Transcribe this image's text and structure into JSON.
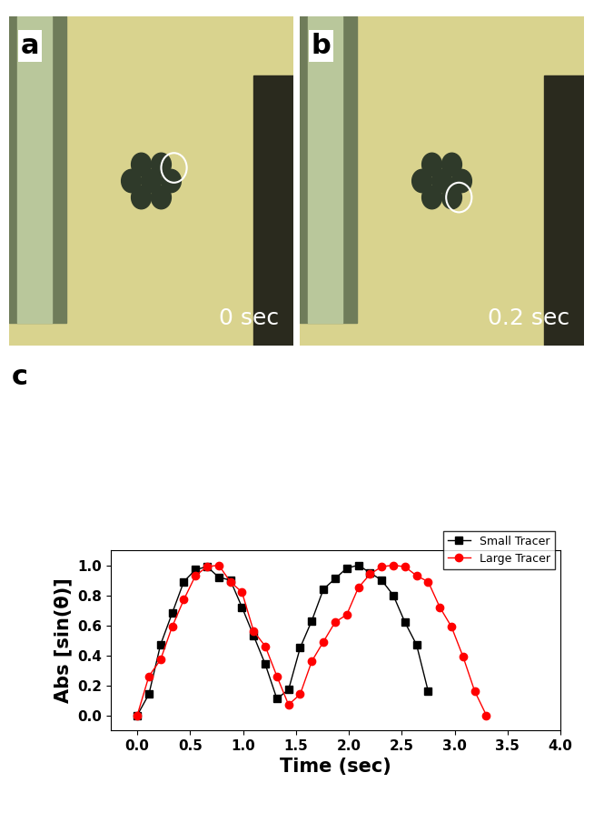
{
  "images": [
    {
      "label": "a",
      "time_label": "0 sec"
    },
    {
      "label": "b",
      "time_label": "0.2 sec"
    }
  ],
  "chart_data": {
    "type": "line",
    "panel_label": "c",
    "x_label": "Time (sec)",
    "y_label": "Abs [sin(θ)]",
    "xlim": [
      -0.25,
      4.0
    ],
    "ylim": [
      -0.1,
      1.1
    ],
    "xticks": [
      {
        "value": 0,
        "label": "0.0"
      },
      {
        "value": 0.5,
        "label": "0.5"
      },
      {
        "value": 1,
        "label": "1.0"
      },
      {
        "value": 1.5,
        "label": "1.5"
      },
      {
        "value": 2,
        "label": "2.0"
      },
      {
        "value": 2.5,
        "label": "2.5"
      },
      {
        "value": 3,
        "label": "3.0"
      },
      {
        "value": 3.5,
        "label": "3.5"
      },
      {
        "value": 4,
        "label": "4.0"
      }
    ],
    "yticks": [
      {
        "value": 0,
        "label": "0.0"
      },
      {
        "value": 0.2,
        "label": "0.2"
      },
      {
        "value": 0.4,
        "label": "0.4"
      },
      {
        "value": 0.6,
        "label": "0.6"
      },
      {
        "value": 0.8,
        "label": "0.8"
      },
      {
        "value": 1,
        "label": "1.0"
      }
    ],
    "legend": "upper right",
    "series": [
      {
        "name": "Small Tracer",
        "color": "#000000",
        "marker": "square",
        "line_style": "solid",
        "x": [
          0,
          0.11,
          0.22,
          0.33,
          0.44,
          0.55,
          0.66,
          0.77,
          0.88,
          0.99,
          1.1,
          1.21,
          1.32,
          1.43,
          1.54,
          1.65,
          1.76,
          1.87,
          1.98,
          2.09,
          2.2,
          2.31,
          2.42,
          2.53,
          2.64,
          2.75
        ],
        "values": [
          0,
          0.14,
          0.47,
          0.68,
          0.89,
          0.97,
          0.99,
          0.92,
          0.9,
          0.72,
          0.53,
          0.34,
          0.11,
          0.17,
          0.45,
          0.63,
          0.84,
          0.91,
          0.98,
          1.0,
          0.95,
          0.9,
          0.8,
          0.62,
          0.47,
          0.16
        ]
      },
      {
        "name": "Large Tracer",
        "color": "#ff0000",
        "marker": "circle",
        "line_style": "solid",
        "x": [
          0,
          0.11,
          0.22,
          0.33,
          0.44,
          0.55,
          0.66,
          0.77,
          0.88,
          0.99,
          1.1,
          1.21,
          1.32,
          1.43,
          1.54,
          1.65,
          1.76,
          1.87,
          1.98,
          2.09,
          2.2,
          2.31,
          2.42,
          2.53,
          2.64,
          2.75,
          2.86,
          2.97,
          3.08,
          3.19,
          3.3
        ],
        "values": [
          0,
          0.26,
          0.37,
          0.59,
          0.77,
          0.93,
          0.99,
          1.0,
          0.89,
          0.82,
          0.56,
          0.46,
          0.26,
          0.07,
          0.14,
          0.36,
          0.49,
          0.62,
          0.67,
          0.85,
          0.94,
          0.99,
          1.0,
          0.99,
          0.93,
          0.89,
          0.72,
          0.59,
          0.39,
          0.16,
          0.0
        ]
      }
    ]
  }
}
